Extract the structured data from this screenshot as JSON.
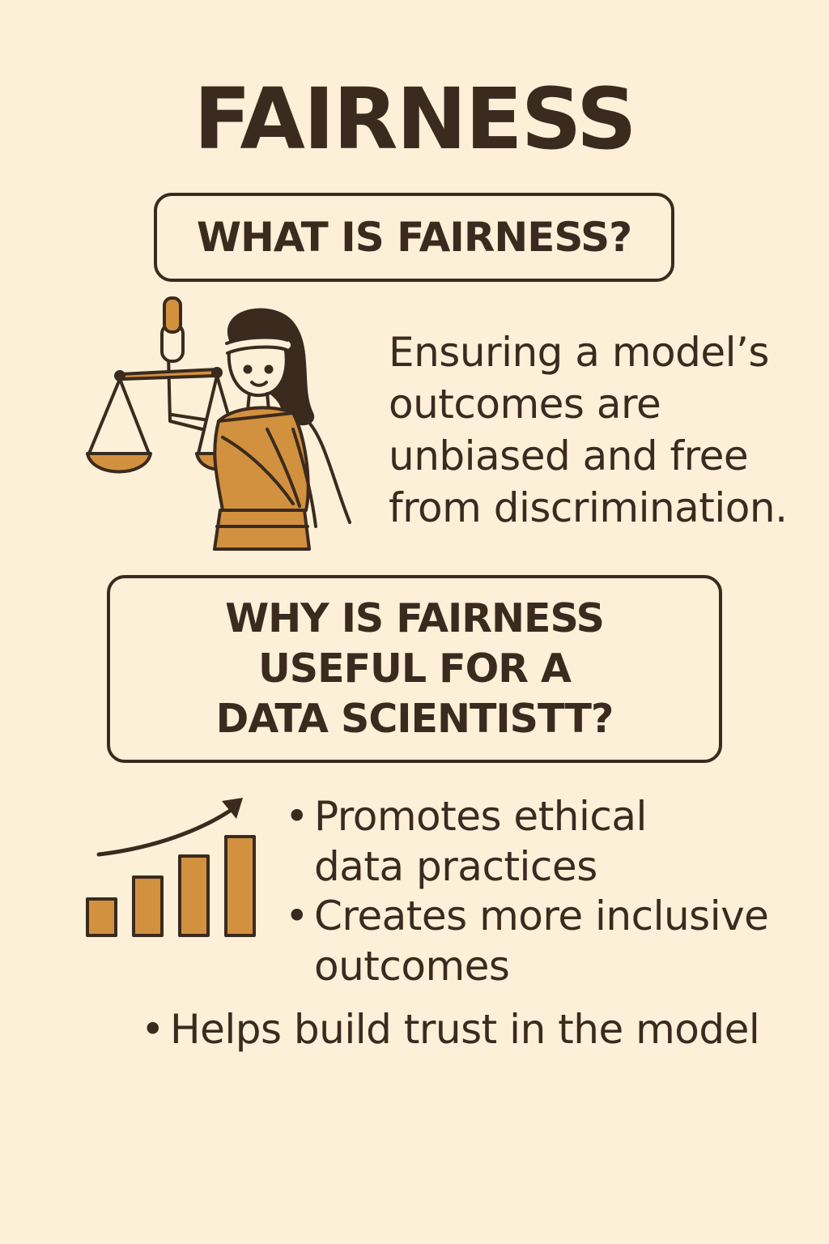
{
  "title": "FAIRNESS",
  "what_section": {
    "heading": "WHAT IS FAIRNESS?",
    "definition_lines": [
      "Ensuring a model’s",
      "outcomes are",
      "unbiased and free",
      "from discrimination."
    ],
    "illustration_icon": "lady-justice-icon"
  },
  "why_section": {
    "heading_lines": [
      "WHY IS FAIRNESS",
      "USEFUL FOR A",
      "DATA SCIENTISTT?"
    ],
    "illustration_icon": "growth-bar-chart-icon",
    "bullet_marker": "•",
    "bullets": [
      {
        "lines": [
          "Promotes ethical",
          "data practices"
        ]
      },
      {
        "lines": [
          "Creates more inclusive",
          "outcomes"
        ]
      },
      {
        "lines": [
          "Helps build trust in the model"
        ]
      }
    ]
  },
  "colors": {
    "background": "#fdf0d8",
    "ink": "#3b2a1e",
    "accent": "#d2913f"
  }
}
